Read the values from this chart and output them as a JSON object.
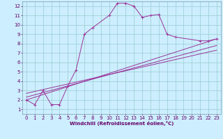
{
  "xlabel": "Windchill (Refroidissement éolien,°C)",
  "bg_color": "#cceeff",
  "line_color": "#993399",
  "grid_color": "#99cccc",
  "spine_color": "#7799aa",
  "xlim": [
    -0.5,
    23.5
  ],
  "ylim": [
    0.5,
    12.5
  ],
  "xticks": [
    0,
    1,
    2,
    3,
    4,
    5,
    6,
    7,
    8,
    9,
    10,
    11,
    12,
    13,
    14,
    15,
    16,
    17,
    18,
    19,
    20,
    21,
    22,
    23
  ],
  "yticks": [
    1,
    2,
    3,
    4,
    5,
    6,
    7,
    8,
    9,
    10,
    11,
    12
  ],
  "main_x": [
    0,
    1,
    2,
    3,
    4,
    5,
    6,
    7,
    8,
    10,
    11,
    12,
    13,
    14,
    15,
    16,
    17,
    18,
    21,
    22,
    23
  ],
  "main_y": [
    2.0,
    1.5,
    3.0,
    1.5,
    1.5,
    3.5,
    5.2,
    9.0,
    9.7,
    11.0,
    12.3,
    12.3,
    12.0,
    10.8,
    11.0,
    11.1,
    9.0,
    8.7,
    8.3,
    8.3,
    8.5
  ],
  "line2_x": [
    0,
    23
  ],
  "line2_y": [
    2.0,
    8.5
  ],
  "line3_x": [
    0,
    23
  ],
  "line3_y": [
    2.3,
    7.8
  ],
  "line4_x": [
    0,
    23
  ],
  "line4_y": [
    2.7,
    7.3
  ],
  "tick_fontsize": 5,
  "xlabel_fontsize": 5,
  "tick_color": "#660066",
  "xlabel_color": "#660066"
}
